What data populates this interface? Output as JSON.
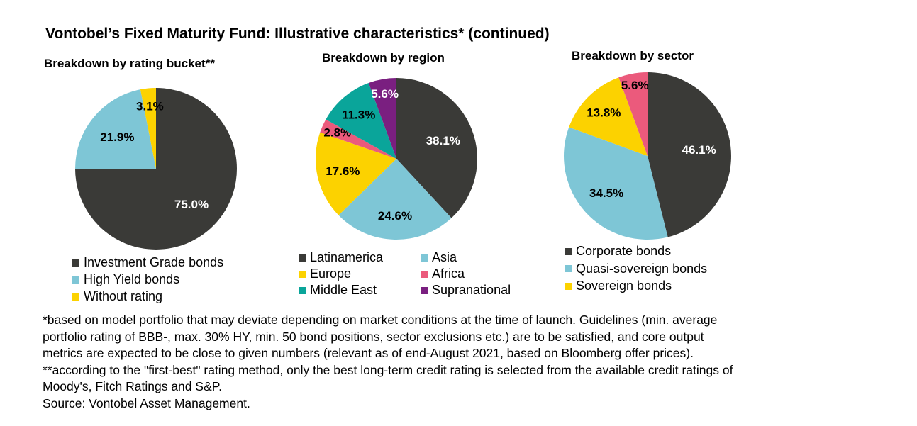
{
  "title": "Vontobel’s Fixed Maturity Fund: Illustrative characteristics* (continued)",
  "colors": {
    "dark": "#3a3a37",
    "light_blue": "#7ec6d6",
    "yellow": "#fcd200",
    "pink": "#eb5a7c",
    "teal": "#0aa59a",
    "purple": "#7a1f80"
  },
  "chart_data": [
    {
      "type": "pie",
      "title": "Breakdown by rating bucket**",
      "categories": [
        "Investment Grade bonds",
        "High Yield bonds",
        "Without rating"
      ],
      "values": [
        75.0,
        21.9,
        3.1
      ],
      "labels": [
        "75.0%",
        "21.9%",
        "3.1%"
      ],
      "colors": [
        "#3a3a37",
        "#7ec6d6",
        "#fcd200"
      ],
      "legend": "bottom"
    },
    {
      "type": "pie",
      "title": "Breakdown by region",
      "categories": [
        "Latinamerica",
        "Asia",
        "Europe",
        "Africa",
        "Middle East",
        "Supranational"
      ],
      "values": [
        38.1,
        24.6,
        17.6,
        2.8,
        11.3,
        5.6
      ],
      "labels": [
        "38.1%",
        "24.6%",
        "17.6%",
        "2.8%",
        "11.3%",
        "5.6%"
      ],
      "colors": [
        "#3a3a37",
        "#7ec6d6",
        "#fcd200",
        "#eb5a7c",
        "#0aa59a",
        "#7a1f80"
      ],
      "legend": "bottom"
    },
    {
      "type": "pie",
      "title": "Breakdown by sector",
      "categories": [
        "Corporate bonds",
        "Quasi-sovereign bonds",
        "Sovereign bonds",
        ""
      ],
      "values": [
        46.1,
        34.5,
        13.8,
        5.6
      ],
      "labels": [
        "46.1%",
        "34.5%",
        "13.8%",
        "5.6%"
      ],
      "colors": [
        "#3a3a37",
        "#7ec6d6",
        "#fcd200",
        "#eb5a7c"
      ],
      "legend": "bottom"
    }
  ],
  "footnotes": [
    "*based on model portfolio that may deviate depending on market conditions at the time of launch. Guidelines (min. average",
    "portfolio rating of BBB-, max. 30% HY, min. 50 bond positions, sector exclusions etc.) are to be satisfied, and core output",
    "metrics are expected to be close to given numbers (relevant as of end-August 2021, based on Bloomberg offer prices).",
    "**according to the \"first-best\" rating method, only the best long-term credit rating is selected from the available credit ratings of",
    "Moody's, Fitch Ratings and S&P.",
    "Source: Vontobel Asset Management."
  ]
}
